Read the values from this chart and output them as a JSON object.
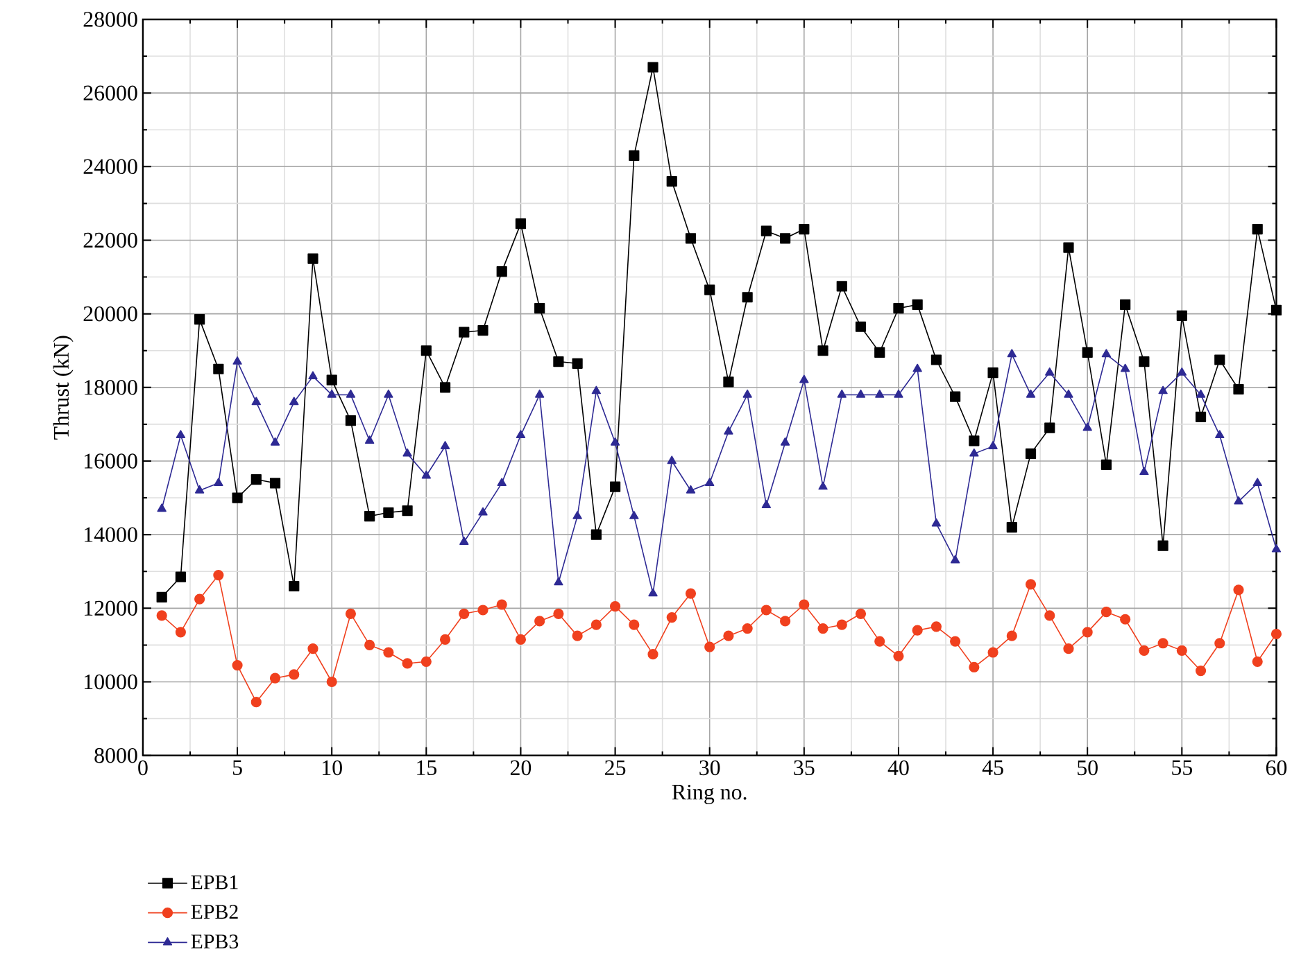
{
  "chart_data": {
    "type": "line",
    "xlabel": "Ring no.",
    "ylabel": "Thrust (kN)",
    "x": [
      1,
      2,
      3,
      4,
      5,
      6,
      7,
      8,
      9,
      10,
      11,
      12,
      13,
      14,
      15,
      16,
      17,
      18,
      19,
      20,
      21,
      22,
      23,
      24,
      25,
      26,
      27,
      28,
      29,
      30,
      31,
      32,
      33,
      34,
      35,
      36,
      37,
      38,
      39,
      40,
      41,
      42,
      43,
      44,
      45,
      46,
      47,
      48,
      49,
      50,
      51,
      52,
      53,
      54,
      55,
      56,
      57,
      58,
      59,
      60
    ],
    "xlim": [
      0,
      60
    ],
    "xticks": [
      0,
      5,
      10,
      15,
      20,
      25,
      30,
      35,
      40,
      45,
      50,
      55,
      60
    ],
    "ylim": [
      8000,
      28000
    ],
    "yticks": [
      8000,
      10000,
      12000,
      14000,
      16000,
      18000,
      20000,
      22000,
      24000,
      26000,
      28000
    ],
    "grid": true,
    "legend": "bottom",
    "line_style": "solid",
    "series": [
      {
        "name": "EPB1",
        "color": "#000000",
        "marker": "square",
        "values": [
          12300,
          12850,
          19850,
          18500,
          15000,
          15500,
          15400,
          12600,
          21500,
          18200,
          17100,
          14500,
          14600,
          14650,
          19000,
          18000,
          19500,
          19550,
          21150,
          22450,
          20150,
          18700,
          18650,
          14000,
          15300,
          24300,
          26700,
          23600,
          22050,
          20650,
          18150,
          20450,
          22250,
          22050,
          22300,
          19000,
          20750,
          19650,
          18950,
          20150,
          20250,
          18750,
          17750,
          16550,
          18400,
          14200,
          16200,
          16900,
          21800,
          18950,
          15900,
          20250,
          18700,
          13700,
          19950,
          17200,
          18750,
          17950,
          22300,
          20100
        ]
      },
      {
        "name": "EPB2",
        "color": "#f0401e",
        "marker": "circle",
        "values": [
          11800,
          11350,
          12250,
          12900,
          10450,
          9450,
          10100,
          10200,
          10900,
          10000,
          11850,
          11000,
          10800,
          10500,
          10550,
          11150,
          11850,
          11950,
          12100,
          11150,
          11650,
          11850,
          11250,
          11550,
          12050,
          11550,
          10750,
          11750,
          12400,
          10950,
          11250,
          11450,
          11950,
          11650,
          12100,
          11450,
          11550,
          11850,
          11100,
          10700,
          11400,
          11500,
          11100,
          10400,
          10800,
          11250,
          12650,
          11800,
          10900,
          11350,
          11900,
          11700,
          10850,
          11050,
          10850,
          10300,
          11050,
          12500,
          10550,
          11300
        ]
      },
      {
        "name": "EPB3",
        "color": "#2e2a94",
        "marker": "triangle",
        "values": [
          14700,
          16700,
          15200,
          15400,
          18700,
          17600,
          16500,
          17600,
          18300,
          17800,
          17800,
          16550,
          17800,
          16200,
          15600,
          16400,
          13800,
          14600,
          15400,
          16700,
          17800,
          12700,
          14500,
          17900,
          16500,
          14500,
          12400,
          16000,
          15200,
          15400,
          16800,
          17800,
          14800,
          16500,
          18200,
          15300,
          17800,
          17800,
          17800,
          17800,
          18500,
          14300,
          13300,
          16200,
          16400,
          18900,
          17800,
          18400,
          17800,
          16900,
          18900,
          18500,
          15700,
          17900,
          18400,
          17800,
          16700,
          14900,
          15400,
          13600
        ]
      }
    ]
  }
}
